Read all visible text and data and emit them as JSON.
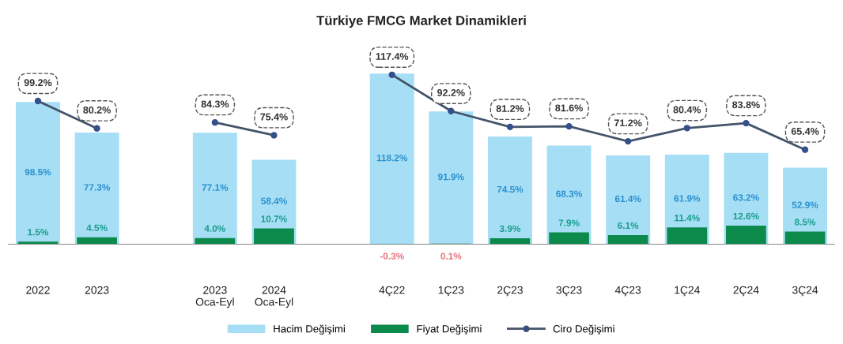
{
  "chart_data": {
    "type": "bar",
    "title": "Türkiye FMCG Market Dinamikleri",
    "categories": [
      "2022",
      "2023",
      null,
      "2023\nOca-Eyl",
      "2024\nOca-Eyl",
      null,
      "4Ç22",
      "1Ç23",
      "2Ç23",
      "3Ç23",
      "4Ç23",
      "1Ç24",
      "2Ç24",
      "3Ç24"
    ],
    "series": [
      {
        "name": "Hacim Değişimi",
        "color": "#a6dff5",
        "values": [
          98.5,
          77.3,
          null,
          77.1,
          58.4,
          null,
          118.2,
          91.9,
          74.5,
          68.3,
          61.4,
          61.9,
          63.2,
          52.9
        ],
        "value_labels": [
          "98.5%",
          "77.3%",
          null,
          "77.1%",
          "58.4%",
          null,
          "118.2%",
          "91.9%",
          "74.5%",
          "68.3%",
          "61.4%",
          "61.9%",
          "63.2%",
          "52.9%"
        ]
      },
      {
        "name": "Fiyat Değişimi",
        "color": "#0b8a4c",
        "values": [
          1.5,
          4.5,
          null,
          4.0,
          10.7,
          null,
          -0.3,
          0.1,
          3.9,
          7.9,
          6.1,
          11.4,
          12.6,
          8.5
        ],
        "value_labels": [
          "1.5%",
          "4.5%",
          null,
          "4.0%",
          "10.7%",
          null,
          "-0.3%",
          "0.1%",
          "3.9%",
          "7.9%",
          "6.1%",
          "11.4%",
          "12.6%",
          "8.5%"
        ]
      },
      {
        "name": "Ciro Değişimi",
        "type": "line",
        "color": "#44546a",
        "values": [
          99.2,
          80.2,
          null,
          84.3,
          75.4,
          null,
          117.4,
          92.2,
          81.2,
          81.6,
          71.2,
          80.4,
          83.8,
          65.4
        ],
        "value_labels": [
          "99.2%",
          "80.2%",
          null,
          "84.3%",
          "75.4%",
          null,
          "117.4%",
          "92.2%",
          "81.2%",
          "81.6%",
          "71.2%",
          "80.4%",
          "83.8%",
          "65.4%"
        ]
      }
    ],
    "marker": "circle",
    "legend": "bottom",
    "grid": false
  }
}
